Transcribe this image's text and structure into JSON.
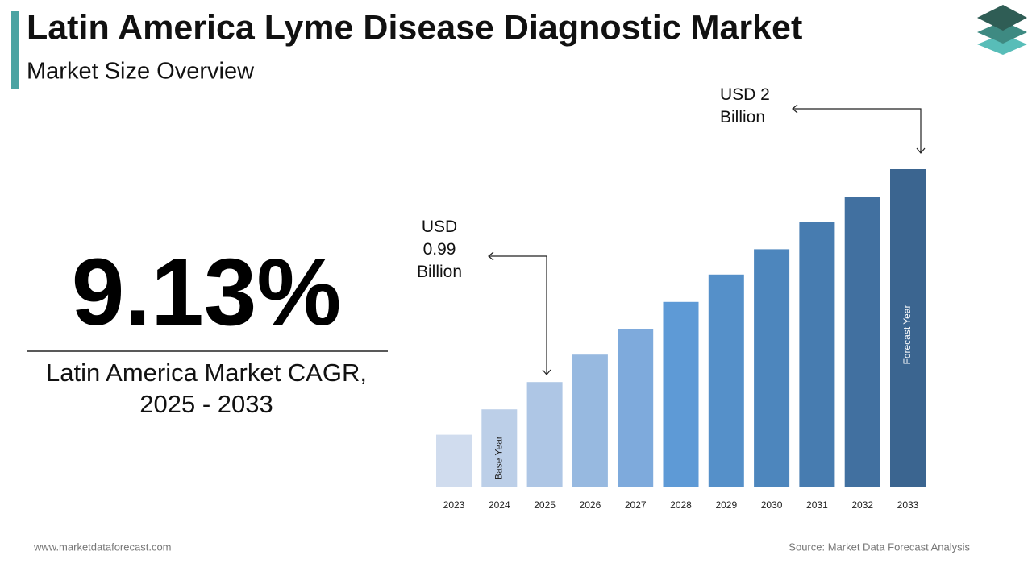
{
  "header": {
    "title": "Latin America Lyme Disease Diagnostic Market",
    "subtitle": "Market Size Overview"
  },
  "highlight": {
    "value_text": "9.13%",
    "caption_line1": "Latin America Market CAGR,",
    "caption_line2": "2025 - 2033"
  },
  "footer": {
    "left": "www.marketdataforecast.com",
    "right": "Source: Market Data Forecast Analysis"
  },
  "chart_data": {
    "type": "bar",
    "categories": [
      "2023",
      "2024",
      "2025",
      "2026",
      "2027",
      "2028",
      "2029",
      "2030",
      "2031",
      "2032",
      "2033"
    ],
    "values": [
      0.74,
      0.86,
      0.99,
      1.12,
      1.24,
      1.37,
      1.5,
      1.62,
      1.75,
      1.87,
      2
    ],
    "value_labels": [
      null,
      null,
      "USD 0.99 Billion",
      null,
      null,
      null,
      null,
      null,
      null,
      null,
      "USD 2 Billion"
    ],
    "bar_notes": [
      null,
      "Base Year",
      null,
      null,
      null,
      null,
      null,
      null,
      null,
      null,
      "Forecast Year"
    ],
    "colors": [
      "#d0dcee",
      "#bccfe8",
      "#aec6e5",
      "#97b9e0",
      "#7eaadc",
      "#5e9ad6",
      "#5590c9",
      "#4d86bd",
      "#477cb0",
      "#4170a0",
      "#3b6590"
    ],
    "ylim": [
      0.49,
      2
    ]
  }
}
